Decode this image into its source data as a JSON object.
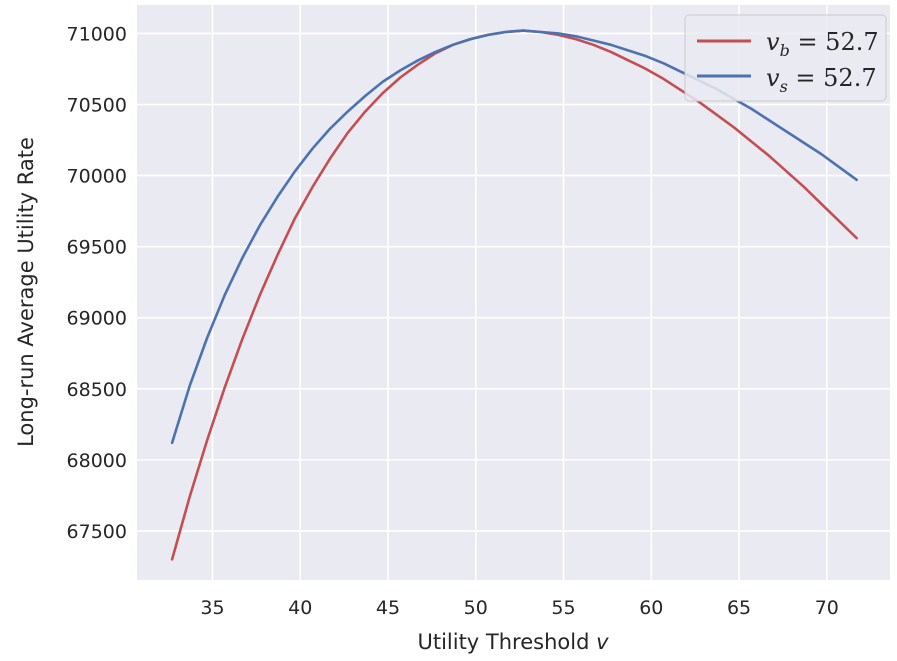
{
  "chart_data": {
    "type": "line",
    "title": "",
    "xlabel": "Utility Threshold ",
    "xlabel_var": "v",
    "ylabel": "Long-run Average Utility Rate",
    "xlim": [
      30.7,
      73.6
    ],
    "ylim": [
      67155,
      71200
    ],
    "xticks": [
      35,
      40,
      45,
      50,
      55,
      60,
      65,
      70
    ],
    "yticks": [
      67500,
      68000,
      68500,
      69000,
      69500,
      70000,
      70500,
      71000
    ],
    "grid": true,
    "legend_position": "top-right",
    "series": [
      {
        "name": "v_b = 52.7",
        "legend_var": "v",
        "legend_sub": "b",
        "legend_rest": " = 52.7",
        "color": "#c44e52",
        "x": [
          32.7,
          33.7,
          34.7,
          35.7,
          36.7,
          37.7,
          38.7,
          39.7,
          40.7,
          41.7,
          42.7,
          43.7,
          44.7,
          45.7,
          46.7,
          47.7,
          48.7,
          49.7,
          50.7,
          51.7,
          52.7,
          53.7,
          54.7,
          55.7,
          56.7,
          57.7,
          58.7,
          59.7,
          60.7,
          61.7,
          62.7,
          63.7,
          64.7,
          65.7,
          66.7,
          67.7,
          68.7,
          69.7,
          70.7,
          71.7
        ],
        "y": [
          67300,
          67740,
          68140,
          68510,
          68850,
          69160,
          69440,
          69700,
          69920,
          70120,
          70300,
          70450,
          70580,
          70690,
          70780,
          70860,
          70920,
          70960,
          70990,
          71010,
          71020,
          71010,
          70990,
          70960,
          70920,
          70870,
          70810,
          70750,
          70680,
          70600,
          70520,
          70430,
          70340,
          70240,
          70140,
          70030,
          69920,
          69800,
          69680,
          69560
        ]
      },
      {
        "name": "v_s = 52.7",
        "legend_var": "v",
        "legend_sub": "s",
        "legend_rest": " = 52.7",
        "color": "#4c72b0",
        "x": [
          32.7,
          33.7,
          34.7,
          35.7,
          36.7,
          37.7,
          38.7,
          39.7,
          40.7,
          41.7,
          42.7,
          43.7,
          44.7,
          45.7,
          46.7,
          47.7,
          48.7,
          49.7,
          50.7,
          51.7,
          52.7,
          53.7,
          54.7,
          55.7,
          56.7,
          57.7,
          58.7,
          59.7,
          60.7,
          61.7,
          62.7,
          63.7,
          64.7,
          65.7,
          66.7,
          67.7,
          68.7,
          69.7,
          70.7,
          71.7
        ],
        "y": [
          68120,
          68520,
          68860,
          69160,
          69420,
          69650,
          69850,
          70030,
          70190,
          70330,
          70450,
          70560,
          70660,
          70740,
          70810,
          70870,
          70920,
          70960,
          70990,
          71010,
          71020,
          71010,
          71000,
          70980,
          70950,
          70920,
          70880,
          70840,
          70790,
          70730,
          70670,
          70610,
          70540,
          70470,
          70390,
          70310,
          70230,
          70150,
          70060,
          69970
        ]
      }
    ]
  }
}
